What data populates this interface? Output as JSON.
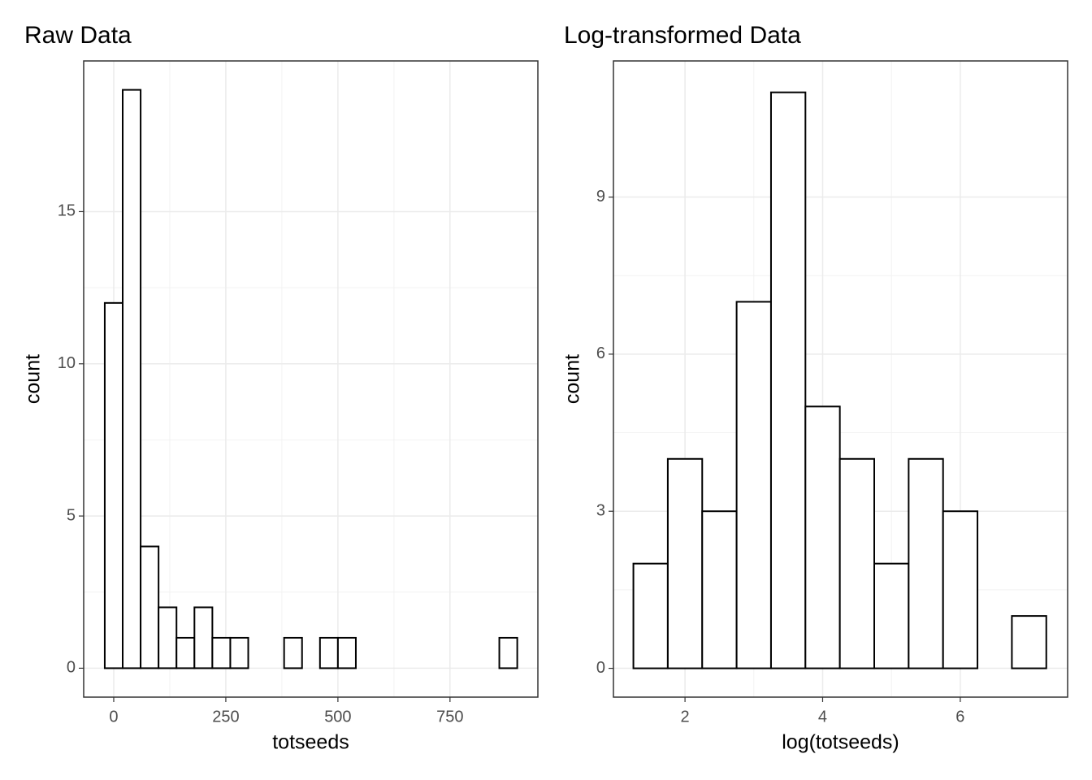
{
  "chart_data": [
    {
      "type": "histogram",
      "title": "Raw Data",
      "x_label": "totseeds",
      "y_label": "count",
      "bins": [
        -20,
        20,
        60,
        100,
        140,
        180,
        220,
        260,
        300,
        340,
        380,
        420,
        460,
        500,
        540,
        580,
        620,
        660,
        700,
        740,
        780,
        820,
        860,
        900
      ],
      "values": [
        12,
        19,
        4,
        2,
        1,
        2,
        1,
        1,
        0,
        0,
        1,
        0,
        1,
        1,
        0,
        0,
        0,
        0,
        0,
        0,
        0,
        0,
        1
      ],
      "color": "#ffffff",
      "edgecolor": "#000000",
      "xlim": [
        -67,
        946
      ],
      "ylim": [
        -0.95,
        19.95
      ],
      "xticks": [
        0,
        250,
        500,
        750
      ],
      "yticks": [
        0,
        5,
        10,
        15
      ],
      "grid": true
    },
    {
      "type": "histogram",
      "title": "Log-transformed Data",
      "x_label": "log(totseeds)",
      "y_label": "count",
      "bins": [
        1.25,
        1.75,
        2.25,
        2.75,
        3.25,
        3.75,
        4.25,
        4.75,
        5.25,
        5.75,
        6.25,
        6.75,
        7.25
      ],
      "values": [
        2,
        4,
        3,
        7,
        11,
        5,
        4,
        2,
        4,
        3,
        0,
        1
      ],
      "color": "#ffffff",
      "edgecolor": "#000000",
      "xlim": [
        0.96,
        7.56
      ],
      "ylim": [
        -0.55,
        11.6
      ],
      "xticks": [
        2,
        4,
        6
      ],
      "yticks": [
        0,
        3,
        6,
        9
      ],
      "grid": true
    }
  ]
}
